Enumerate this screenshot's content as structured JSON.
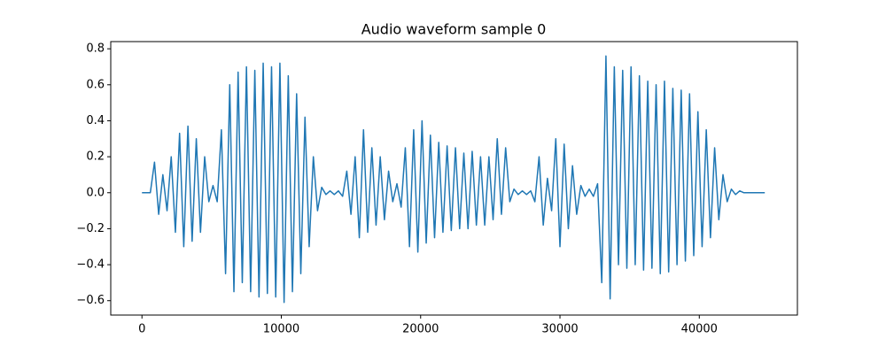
{
  "chart_data": {
    "type": "line",
    "title": "Audio waveform sample 0",
    "color": "#1f77b4",
    "x": [
      0,
      300,
      600,
      900,
      1200,
      1500,
      1800,
      2100,
      2400,
      2700,
      3000,
      3300,
      3600,
      3900,
      4200,
      4500,
      4800,
      5100,
      5400,
      5700,
      6000,
      6300,
      6600,
      6900,
      7200,
      7500,
      7800,
      8100,
      8400,
      8700,
      9000,
      9300,
      9600,
      9900,
      10200,
      10500,
      10800,
      11100,
      11400,
      11700,
      12000,
      12300,
      12600,
      12900,
      13200,
      13500,
      13800,
      14100,
      14400,
      14700,
      15000,
      15300,
      15600,
      15900,
      16200,
      16500,
      16800,
      17100,
      17400,
      17700,
      18000,
      18300,
      18600,
      18900,
      19200,
      19500,
      19800,
      20100,
      20400,
      20700,
      21000,
      21300,
      21600,
      21900,
      22200,
      22500,
      22800,
      23100,
      23400,
      23700,
      24000,
      24300,
      24600,
      24900,
      25200,
      25500,
      25800,
      26100,
      26400,
      26700,
      27000,
      27300,
      27600,
      27900,
      28200,
      28500,
      28800,
      29100,
      29400,
      29700,
      30000,
      30300,
      30600,
      30900,
      31200,
      31500,
      31800,
      32100,
      32400,
      32700,
      33000,
      33300,
      33600,
      33900,
      34200,
      34500,
      34800,
      35100,
      35400,
      35700,
      36000,
      36300,
      36600,
      36900,
      37200,
      37500,
      37800,
      38100,
      38400,
      38700,
      39000,
      39300,
      39600,
      39900,
      40200,
      40500,
      40800,
      41100,
      41400,
      41700,
      42000,
      42300,
      42600,
      42900,
      43200,
      43500,
      43800,
      44100,
      44400,
      44700
    ],
    "values": [
      0,
      0,
      0,
      0.17,
      -0.12,
      0.1,
      -0.1,
      0.2,
      -0.22,
      0.33,
      -0.3,
      0.37,
      -0.27,
      0.3,
      -0.22,
      0.2,
      -0.05,
      0.04,
      -0.05,
      0.35,
      -0.45,
      0.6,
      -0.55,
      0.67,
      -0.5,
      0.7,
      -0.55,
      0.68,
      -0.58,
      0.72,
      -0.56,
      0.7,
      -0.58,
      0.72,
      -0.61,
      0.65,
      -0.55,
      0.55,
      -0.45,
      0.42,
      -0.3,
      0.2,
      -0.1,
      0.03,
      -0.01,
      0.01,
      -0.01,
      0.01,
      -0.02,
      0.12,
      -0.12,
      0.2,
      -0.25,
      0.35,
      -0.22,
      0.25,
      -0.18,
      0.2,
      -0.15,
      0.12,
      -0.05,
      0.05,
      -0.08,
      0.25,
      -0.3,
      0.35,
      -0.33,
      0.4,
      -0.28,
      0.32,
      -0.25,
      0.28,
      -0.22,
      0.26,
      -0.21,
      0.25,
      -0.2,
      0.22,
      -0.2,
      0.23,
      -0.18,
      0.2,
      -0.18,
      0.2,
      -0.15,
      0.3,
      -0.12,
      0.25,
      -0.05,
      0.02,
      -0.01,
      0.01,
      -0.01,
      0.01,
      -0.05,
      0.2,
      -0.18,
      0.08,
      -0.1,
      0.3,
      -0.3,
      0.27,
      -0.2,
      0.15,
      -0.12,
      0.04,
      -0.02,
      0.02,
      -0.02,
      0.05,
      -0.5,
      0.76,
      -0.59,
      0.7,
      -0.4,
      0.68,
      -0.42,
      0.7,
      -0.4,
      0.65,
      -0.43,
      0.62,
      -0.42,
      0.6,
      -0.45,
      0.62,
      -0.44,
      0.58,
      -0.4,
      0.57,
      -0.38,
      0.55,
      -0.35,
      0.45,
      -0.3,
      0.35,
      -0.25,
      0.25,
      -0.15,
      0.1,
      -0.05,
      0.02,
      -0.01,
      0.01,
      0,
      0,
      0,
      0,
      0,
      0
    ],
    "xlim": [
      -2240,
      47040
    ],
    "ylim": [
      -0.68,
      0.84
    ],
    "xticks": [
      0,
      10000,
      20000,
      30000,
      40000
    ],
    "yticks": [
      {
        "value": -0.6,
        "label": "−0.6"
      },
      {
        "value": -0.4,
        "label": "−0.4"
      },
      {
        "value": -0.2,
        "label": "−0.2"
      },
      {
        "value": 0,
        "label": "0.0"
      },
      0.2,
      0.4,
      0.6,
      0.8
    ]
  }
}
